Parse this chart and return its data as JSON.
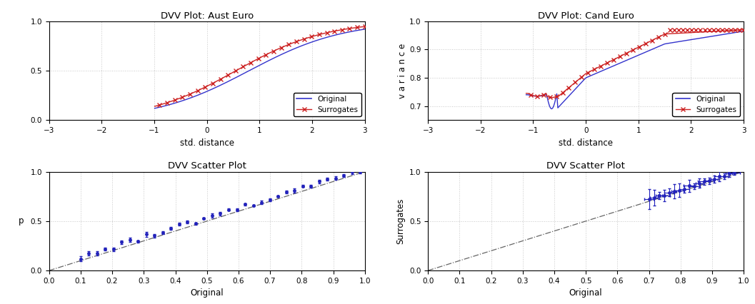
{
  "top_left": {
    "title": "DVV Plot: Aust Euro",
    "xlabel": "std. distance",
    "ylabel": "",
    "xlim": [
      -3,
      3
    ],
    "ylim": [
      0,
      1
    ],
    "yticks": [
      0,
      0.5,
      1
    ],
    "xticks": [
      -3,
      -2,
      -1,
      0,
      1,
      2,
      3
    ],
    "original_color": "#3333cc",
    "surrogate_color": "#cc2222"
  },
  "top_right": {
    "title": "DVV Plot: Cand Euro",
    "xlabel": "std. distance",
    "ylabel": "v a r i a n c e",
    "xlim": [
      -3,
      3
    ],
    "ylim": [
      0.65,
      1.0
    ],
    "yticks": [
      0.7,
      0.8,
      0.9,
      1.0
    ],
    "xticks": [
      -3,
      -2,
      -1,
      0,
      1,
      2,
      3
    ],
    "original_color": "#3333cc",
    "surrogate_color": "#cc2222"
  },
  "bot_left": {
    "title": "DVV Scatter Plot",
    "xlabel": "Original",
    "ylabel": "p",
    "xlim": [
      0,
      1
    ],
    "ylim": [
      0,
      1
    ],
    "yticks": [
      0,
      0.5,
      1
    ],
    "xticks": [
      0,
      0.1,
      0.2,
      0.3,
      0.4,
      0.5,
      0.6,
      0.7,
      0.8,
      0.9,
      1
    ],
    "scatter_color": "#2222bb",
    "diag_color": "#555555"
  },
  "bot_right": {
    "title": "DVV Scatter Plot",
    "xlabel": "Original",
    "ylabel": "Surrogates",
    "xlim": [
      0,
      1
    ],
    "ylim": [
      0,
      1
    ],
    "yticks": [
      0,
      0.5,
      1
    ],
    "xticks": [
      0,
      0.1,
      0.2,
      0.3,
      0.4,
      0.5,
      0.6,
      0.7,
      0.8,
      0.9,
      1
    ],
    "scatter_color": "#2222bb",
    "diag_color": "#555555"
  }
}
